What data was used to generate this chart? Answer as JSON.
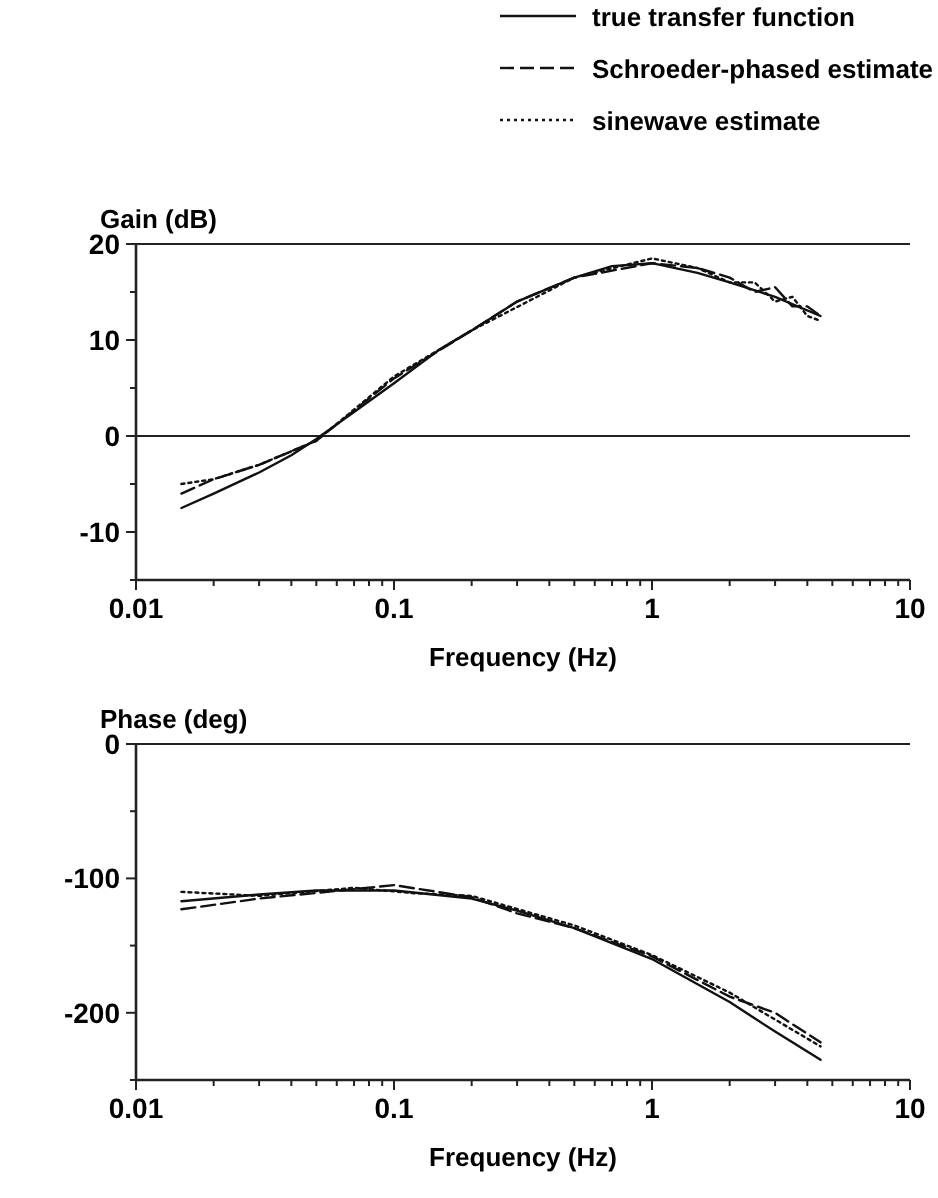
{
  "chart_data": [
    {
      "type": "line",
      "ylabel": "Gain (dB)",
      "xlabel": "Frequency (Hz)",
      "legend": "top",
      "log": "x",
      "xlim": [
        0.01,
        10
      ],
      "ylim": [
        -15,
        20
      ],
      "xticks": [
        0.01,
        {
          "value": 0.02,
          "label": null
        },
        {
          "value": 0.03,
          "label": null
        },
        {
          "value": 0.04,
          "label": null
        },
        {
          "value": 0.05,
          "label": null
        },
        {
          "value": 0.06,
          "label": null
        },
        {
          "value": 0.07,
          "label": null
        },
        {
          "value": 0.08,
          "label": null
        },
        {
          "value": 0.09,
          "label": null
        },
        0.1,
        {
          "value": 0.2,
          "label": null
        },
        {
          "value": 0.3,
          "label": null
        },
        {
          "value": 0.4,
          "label": null
        },
        {
          "value": 0.5,
          "label": null
        },
        {
          "value": 0.6,
          "label": null
        },
        {
          "value": 0.7,
          "label": null
        },
        {
          "value": 0.8,
          "label": null
        },
        {
          "value": 0.9,
          "label": null
        },
        1,
        {
          "value": 2,
          "label": null
        },
        {
          "value": 3,
          "label": null
        },
        {
          "value": 4,
          "label": null
        },
        {
          "value": 5,
          "label": null
        },
        {
          "value": 6,
          "label": null
        },
        {
          "value": 7,
          "label": null
        },
        {
          "value": 8,
          "label": null
        },
        {
          "value": 9,
          "label": null
        },
        10
      ],
      "yticks": [
        {
          "value": -15,
          "label": null
        },
        -10,
        {
          "value": -5,
          "label": null
        },
        0,
        {
          "value": 5,
          "label": null
        },
        10,
        {
          "value": 15,
          "label": null
        },
        20
      ],
      "ref_lines": [
        {
          "axis": "y",
          "value": 0
        }
      ],
      "series": [
        {
          "name": "true transfer function",
          "color": "#111111",
          "line_style": "solid",
          "x": [
            0.015,
            0.02,
            0.03,
            0.04,
            0.05,
            0.07,
            0.1,
            0.15,
            0.2,
            0.3,
            0.5,
            0.7,
            1,
            1.5,
            2,
            3,
            4.5
          ],
          "values": [
            -7.5,
            -6,
            -3.8,
            -2,
            -0.3,
            2.5,
            5.5,
            9,
            11,
            14,
            16.5,
            17.7,
            18,
            17,
            16,
            14.5,
            12.5
          ]
        },
        {
          "name": "Schroeder-phased estimate",
          "color": "#111111",
          "line_style": "dashed",
          "x": [
            0.015,
            0.02,
            0.03,
            0.05,
            0.1,
            0.2,
            0.3,
            0.5,
            1,
            1.5,
            2,
            2.5,
            3,
            3.5,
            4,
            4.5
          ],
          "values": [
            -6,
            -4.5,
            -3,
            -0.5,
            6,
            11,
            14,
            16.5,
            18,
            17.5,
            16.5,
            15,
            15.5,
            13.5,
            13.5,
            12.5
          ]
        },
        {
          "name": "sinewave estimate",
          "color": "#111111",
          "line_style": "dotted",
          "x": [
            0.015,
            0.02,
            0.03,
            0.05,
            0.1,
            0.2,
            0.5,
            1,
            1.5,
            2,
            2.5,
            3,
            3.5,
            4,
            4.5
          ],
          "values": [
            -5,
            -4.5,
            -3,
            -0.5,
            6.2,
            11,
            16.5,
            18.5,
            17.5,
            16,
            16,
            14,
            14.5,
            12.5,
            12
          ]
        }
      ]
    },
    {
      "type": "line",
      "ylabel": "Phase (deg)",
      "xlabel": "Frequency (Hz)",
      "log": "x",
      "xlim": [
        0.01,
        10
      ],
      "ylim": [
        -250,
        0
      ],
      "xticks": [
        0.01,
        {
          "value": 0.02,
          "label": null
        },
        {
          "value": 0.03,
          "label": null
        },
        {
          "value": 0.04,
          "label": null
        },
        {
          "value": 0.05,
          "label": null
        },
        {
          "value": 0.06,
          "label": null
        },
        {
          "value": 0.07,
          "label": null
        },
        {
          "value": 0.08,
          "label": null
        },
        {
          "value": 0.09,
          "label": null
        },
        0.1,
        {
          "value": 0.2,
          "label": null
        },
        {
          "value": 0.3,
          "label": null
        },
        {
          "value": 0.4,
          "label": null
        },
        {
          "value": 0.5,
          "label": null
        },
        {
          "value": 0.6,
          "label": null
        },
        {
          "value": 0.7,
          "label": null
        },
        {
          "value": 0.8,
          "label": null
        },
        {
          "value": 0.9,
          "label": null
        },
        1,
        {
          "value": 2,
          "label": null
        },
        {
          "value": 3,
          "label": null
        },
        {
          "value": 4,
          "label": null
        },
        {
          "value": 5,
          "label": null
        },
        {
          "value": 6,
          "label": null
        },
        {
          "value": 7,
          "label": null
        },
        {
          "value": 8,
          "label": null
        },
        {
          "value": 9,
          "label": null
        },
        10
      ],
      "yticks": [
        {
          "value": -250,
          "label": null
        },
        -200,
        {
          "value": -150,
          "label": null
        },
        -100,
        {
          "value": -50,
          "label": null
        },
        0
      ],
      "series": [
        {
          "color": "#111111",
          "line_style": "solid",
          "x": [
            0.015,
            0.03,
            0.05,
            0.1,
            0.2,
            0.3,
            0.5,
            1,
            2,
            3,
            4.5
          ],
          "values": [
            -117,
            -112,
            -109,
            -109,
            -115,
            -124,
            -137,
            -160,
            -192,
            -214,
            -235
          ]
        },
        {
          "color": "#111111",
          "line_style": "dashed",
          "x": [
            0.015,
            0.03,
            0.07,
            0.1,
            0.2,
            0.3,
            0.5,
            1,
            2,
            3,
            4.5
          ],
          "values": [
            -123,
            -115,
            -108,
            -105,
            -114,
            -126,
            -137,
            -158,
            -188,
            -200,
            -222
          ]
        },
        {
          "color": "#111111",
          "line_style": "dotted",
          "x": [
            0.015,
            0.03,
            0.07,
            0.12,
            0.2,
            0.5,
            1,
            2,
            3,
            4.5
          ],
          "values": [
            -110,
            -113,
            -107,
            -111,
            -113,
            -135,
            -157,
            -185,
            -205,
            -225
          ]
        }
      ]
    }
  ]
}
